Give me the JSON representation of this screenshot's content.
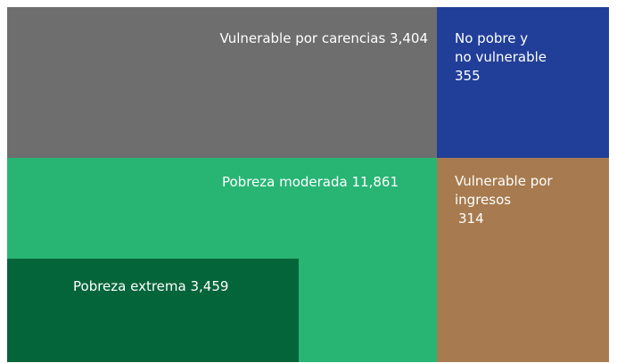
{
  "nodes": [
    {
      "label": "Vulnerable por carencias",
      "value": "3,404"
    },
    {
      "label_lines": [
        "No pobre y",
        "no vulnerable"
      ],
      "value": "355"
    },
    {
      "label": "Pobreza moderada",
      "value": "11,861"
    },
    {
      "label_lines": [
        "Vulnerable por",
        "ingresos"
      ],
      "value": "314"
    },
    {
      "label": "Pobreza extrema",
      "value": "3,459"
    }
  ]
}
